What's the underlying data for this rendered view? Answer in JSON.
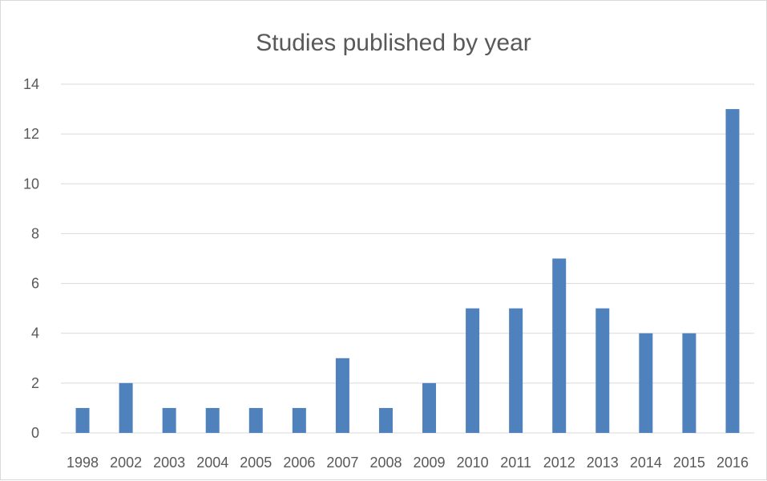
{
  "chart_data": {
    "type": "bar",
    "title": "Studies published by year",
    "xlabel": "",
    "ylabel": "",
    "categories": [
      "1998",
      "2002",
      "2003",
      "2004",
      "2005",
      "2006",
      "2007",
      "2008",
      "2009",
      "2010",
      "2011",
      "2012",
      "2013",
      "2014",
      "2015",
      "2016"
    ],
    "values": [
      1,
      2,
      1,
      1,
      1,
      1,
      3,
      1,
      2,
      5,
      5,
      7,
      5,
      4,
      4,
      13
    ],
    "ylim": [
      0,
      14
    ],
    "yticks": [
      "0",
      "2",
      "4",
      "6",
      "8",
      "10",
      "12",
      "14"
    ],
    "grid": true,
    "legend": "none",
    "colors": {
      "bar": "#4f81bd",
      "grid": "#d9d9d9",
      "text": "#595959"
    }
  }
}
